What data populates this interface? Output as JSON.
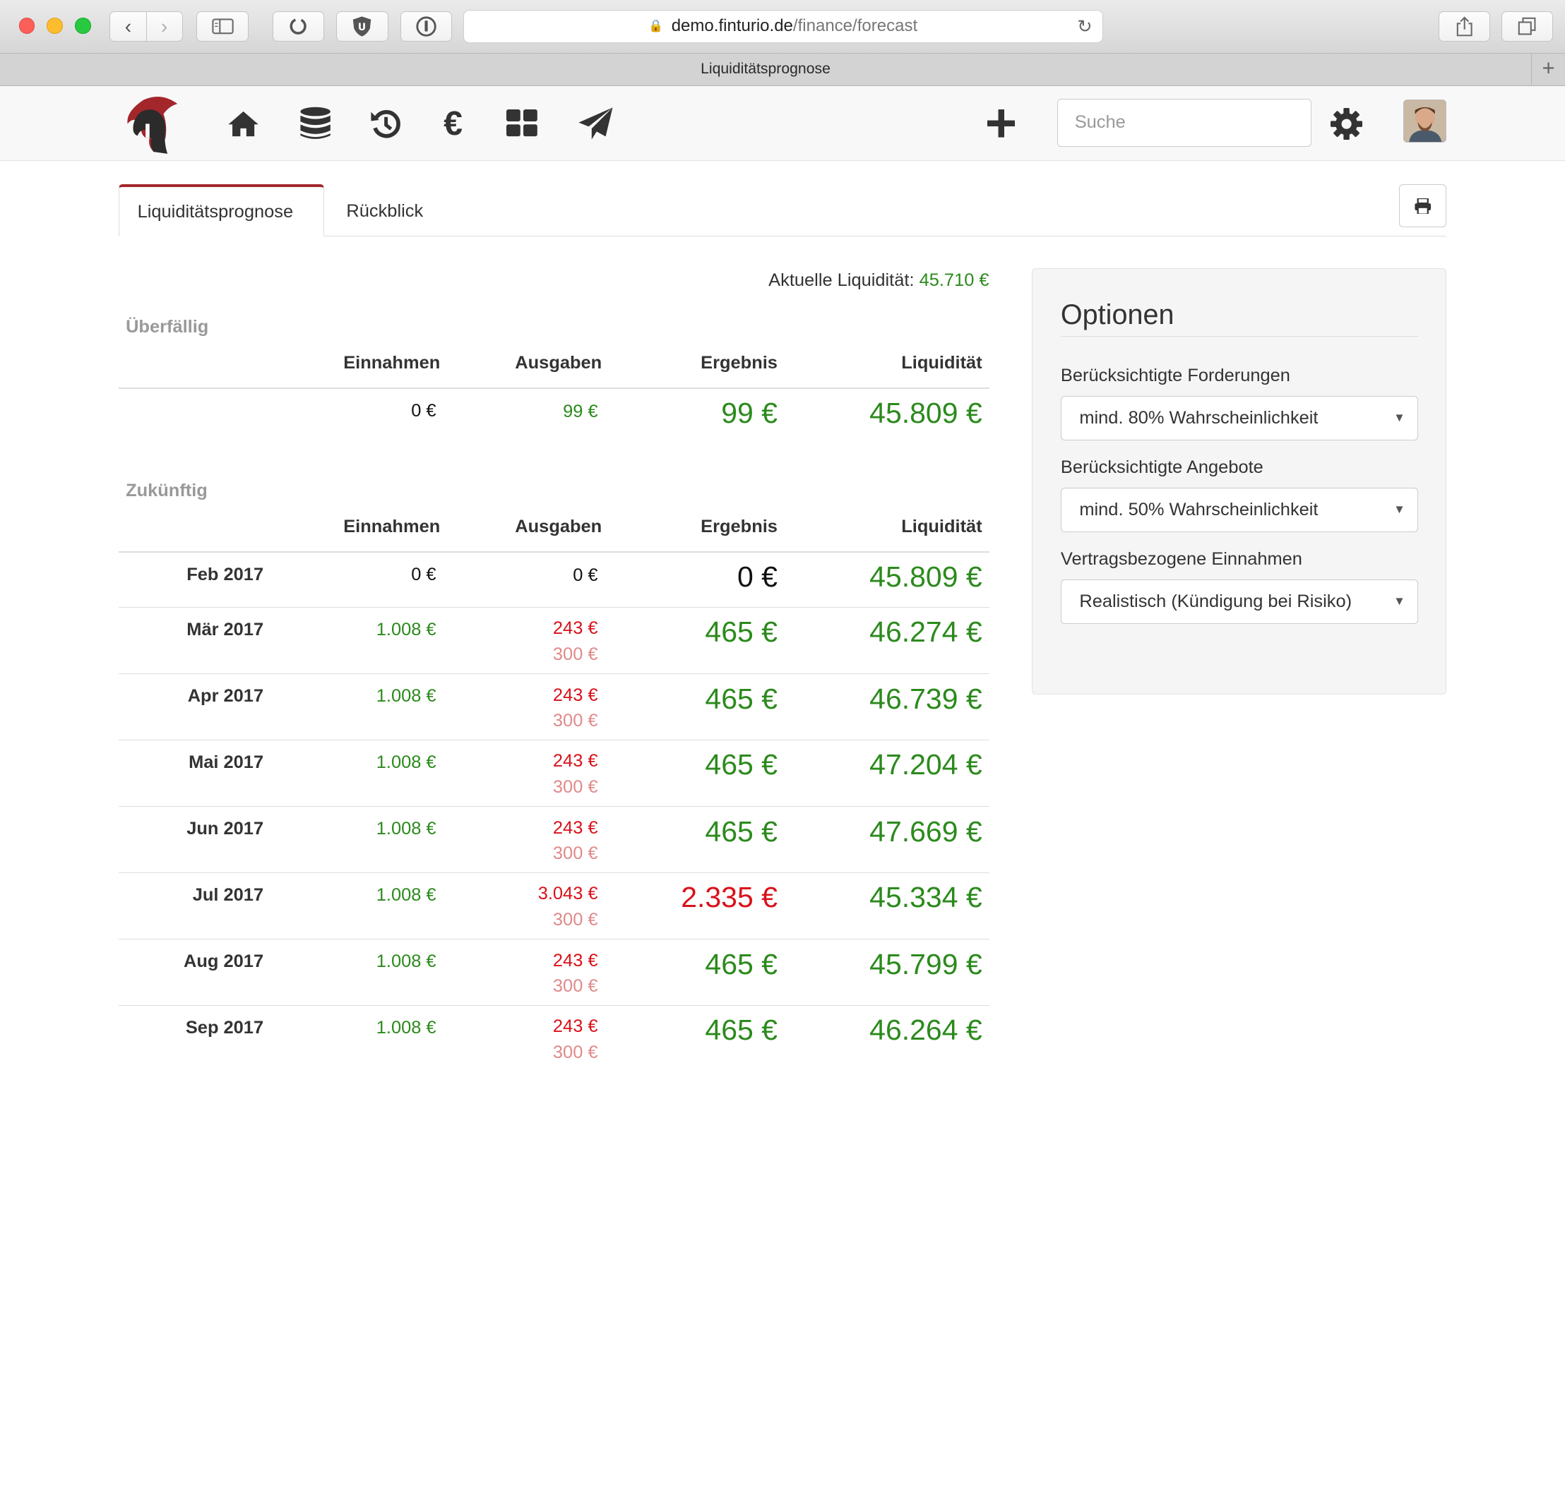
{
  "browser": {
    "url_host": "demo.finturio.de",
    "url_path": "/finance/forecast",
    "tab_title": "Liquiditätsprognose"
  },
  "nav": {
    "search_placeholder": "Suche"
  },
  "tabs": {
    "forecast": "Liquiditätsprognose",
    "review": "Rückblick"
  },
  "summary": {
    "label": "Aktuelle Liquidität:",
    "value": "45.710 €"
  },
  "headers": {
    "income": "Einnahmen",
    "expenses": "Ausgaben",
    "result": "Ergebnis",
    "liquidity": "Liquidität"
  },
  "overdue": {
    "title": "Überfällig",
    "income": "0 €",
    "expenses": "99 €",
    "result": "99 €",
    "liquidity": "45.809 €"
  },
  "future": {
    "title": "Zukünftig",
    "rows": [
      {
        "month": "Feb 2017",
        "income": "0 €",
        "expenses": "0 €",
        "expenses2": "",
        "result": "0 €",
        "liquidity": "45.809 €"
      },
      {
        "month": "Mär 2017",
        "income": "1.008 €",
        "expenses": "243 €",
        "expenses2": "300 €",
        "result": "465 €",
        "liquidity": "46.274 €"
      },
      {
        "month": "Apr 2017",
        "income": "1.008 €",
        "expenses": "243 €",
        "expenses2": "300 €",
        "result": "465 €",
        "liquidity": "46.739 €"
      },
      {
        "month": "Mai 2017",
        "income": "1.008 €",
        "expenses": "243 €",
        "expenses2": "300 €",
        "result": "465 €",
        "liquidity": "47.204 €"
      },
      {
        "month": "Jun 2017",
        "income": "1.008 €",
        "expenses": "243 €",
        "expenses2": "300 €",
        "result": "465 €",
        "liquidity": "47.669 €"
      },
      {
        "month": "Jul 2017",
        "income": "1.008 €",
        "expenses": "3.043 €",
        "expenses2": "300 €",
        "result": "2.335 €",
        "liquidity": "45.334 €"
      },
      {
        "month": "Aug 2017",
        "income": "1.008 €",
        "expenses": "243 €",
        "expenses2": "300 €",
        "result": "465 €",
        "liquidity": "45.799 €"
      },
      {
        "month": "Sep 2017",
        "income": "1.008 €",
        "expenses": "243 €",
        "expenses2": "300 €",
        "result": "465 €",
        "liquidity": "46.264 €"
      }
    ]
  },
  "options": {
    "title": "Optionen",
    "receivables_label": "Berücksichtigte Forderungen",
    "receivables_value": "mind. 80% Wahrscheinlichkeit",
    "offers_label": "Berücksichtigte Angebote",
    "offers_value": "mind. 50% Wahrscheinlichkeit",
    "contract_label": "Vertragsbezogene Einnahmen",
    "contract_value": "Realistisch (Kündigung bei Risiko)"
  },
  "colors": {
    "accent": "#a3262b",
    "positive": "#2b8a1c",
    "negative": "#d9121a"
  }
}
